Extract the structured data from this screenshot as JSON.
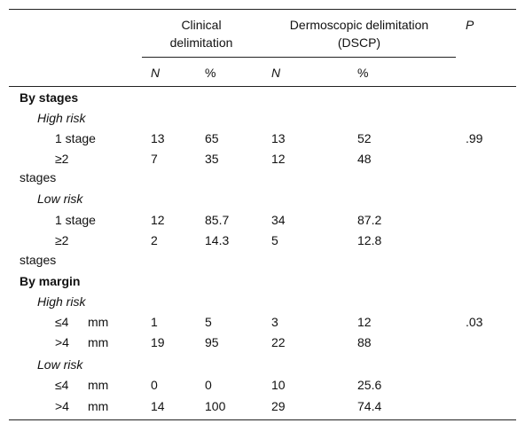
{
  "header": {
    "clinical_line1": "Clinical",
    "clinical_line2": "delimitation",
    "dermo_line1": "Dermoscopic delimitation",
    "dermo_line2": "(DSCP)",
    "p_label": "P",
    "n1": "N",
    "pct1": "%",
    "n2": "N",
    "pct2": "%"
  },
  "sections": [
    {
      "title": "By stages",
      "groups": [
        {
          "label": "High risk",
          "rows": [
            {
              "label": "1 stage",
              "label2": "",
              "n1": "13",
              "p1": "65",
              "n2": "13",
              "p2": "52",
              "p": ".99"
            },
            {
              "label": "≥2",
              "label2": "stages",
              "n1": "7",
              "p1": "35",
              "n2": "12",
              "p2": "48",
              "p": ""
            }
          ]
        },
        {
          "label": "Low risk",
          "rows": [
            {
              "label": "1 stage",
              "label2": "",
              "n1": "12",
              "p1": "85.7",
              "n2": "34",
              "p2": "87.2",
              "p": ""
            },
            {
              "label": "≥2",
              "label2": "stages",
              "n1": "2",
              "p1": "14.3",
              "n2": "5",
              "p2": "12.8",
              "p": ""
            }
          ]
        }
      ]
    },
    {
      "title": "By margin",
      "groups": [
        {
          "label": "High risk",
          "rows": [
            {
              "sym": "≤4",
              "unit": "mm",
              "n1": "1",
              "p1": "5",
              "n2": "3",
              "p2": "12",
              "p": ".03"
            },
            {
              "sym": ">4",
              "unit": "mm",
              "n1": "19",
              "p1": "95",
              "n2": "22",
              "p2": "88",
              "p": ""
            }
          ]
        },
        {
          "label": "Low risk",
          "rows": [
            {
              "sym": "≤4",
              "unit": "mm",
              "n1": "0",
              "p1": "0",
              "n2": "10",
              "p2": "25.6",
              "p": ""
            },
            {
              "sym": ">4",
              "unit": "mm",
              "n1": "14",
              "p1": "100",
              "n2": "29",
              "p2": "74.4",
              "p": ""
            }
          ]
        }
      ]
    }
  ]
}
